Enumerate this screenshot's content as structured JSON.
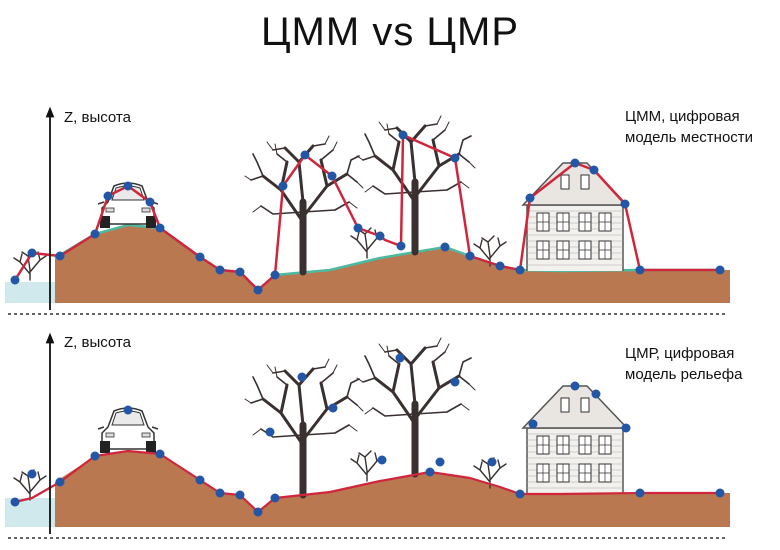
{
  "title": "ЦММ vs ЦМР",
  "panel_top": {
    "axis_label": "Z, высота",
    "caption_line1": "ЦММ, цифровая",
    "caption_line2": "модель местности"
  },
  "panel_bottom": {
    "axis_label": "Z, высота",
    "caption_line1": "ЦМР, цифровая",
    "caption_line2": "модель рельефа"
  },
  "colors": {
    "ground": "#b97850",
    "grass": "#4fb9a0",
    "water": "#cfe9ec",
    "profile_line": "#d0263c",
    "point": "#2456a6",
    "axis": "#111111",
    "tree": "#3a3030"
  }
}
